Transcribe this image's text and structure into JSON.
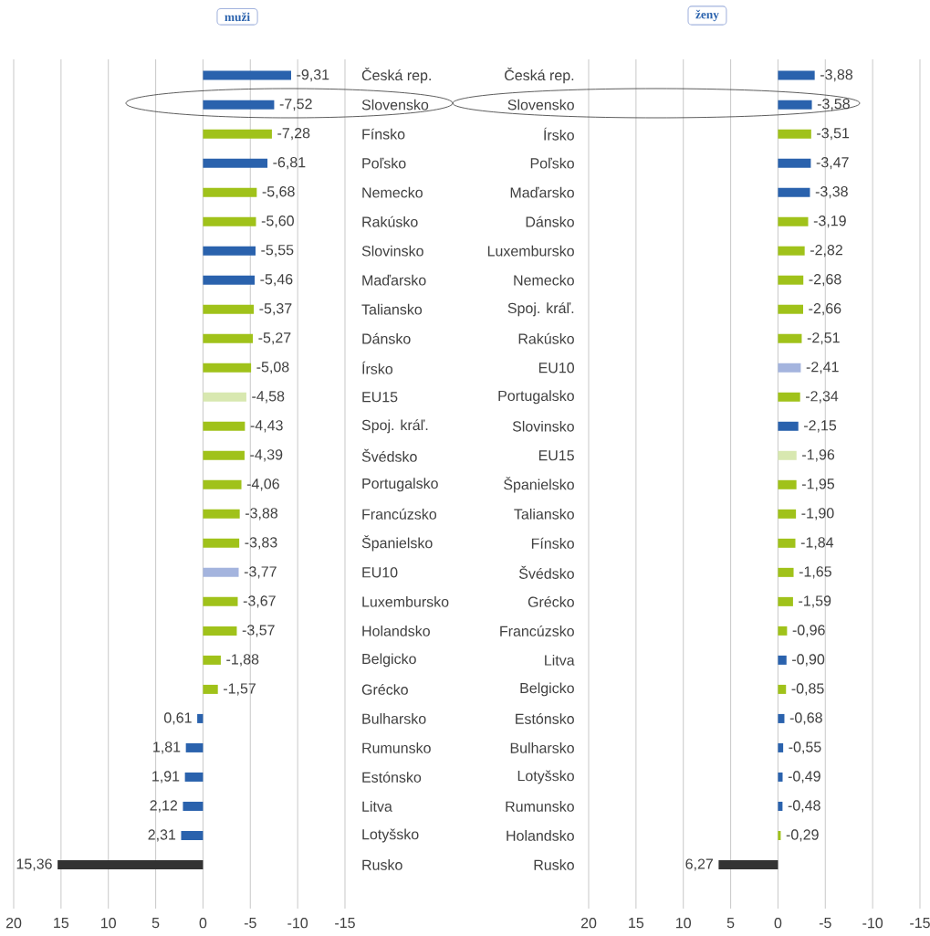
{
  "chart_data": [
    {
      "type": "bar",
      "orientation": "horizontal",
      "title": "muži",
      "categories": [
        "Česká rep.",
        "Slovensko",
        "Fínsko",
        "Poľsko",
        "Nemecko",
        "Rakúsko",
        "Slovinsko",
        "Maďarsko",
        "Taliansko",
        "Dánsko",
        "Írsko",
        "EU15",
        "Spoj. kráľ.",
        "Švédsko",
        "Portugalsko",
        "Francúzsko",
        "Španielsko",
        "EU10",
        "Luxembursko",
        "Holandsko",
        "Belgicko",
        "Grécko",
        "Bulharsko",
        "Rumunsko",
        "Estónsko",
        "Litva",
        "Lotyšsko",
        "Rusko"
      ],
      "values": [
        -9.31,
        -7.52,
        -7.28,
        -6.81,
        -5.68,
        -5.6,
        -5.55,
        -5.46,
        -5.37,
        -5.27,
        -5.08,
        -4.58,
        -4.43,
        -4.39,
        -4.06,
        -3.88,
        -3.83,
        -3.77,
        -3.67,
        -3.57,
        -1.88,
        -1.57,
        0.61,
        1.81,
        1.91,
        2.12,
        2.31,
        15.36
      ],
      "value_labels": [
        "-9,31",
        "-7,52",
        "-7,28",
        "-6,81",
        "-5,68",
        "-5,60",
        "-5,55",
        "-5,46",
        "-5,37",
        "-5,27",
        "-5,08",
        "-4,58",
        "-4,43",
        "-4,39",
        "-4,06",
        "-3,88",
        "-3,83",
        "-3,77",
        "-3,67",
        "-3,57",
        "-1,88",
        "-1,57",
        "0,61",
        "1,81",
        "1,91",
        "2,12",
        "2,31",
        "15,36"
      ],
      "colors": [
        "#2a62ad",
        "#2a62ad",
        "#a0c21a",
        "#2a62ad",
        "#a0c21a",
        "#a0c21a",
        "#2a62ad",
        "#2a62ad",
        "#a0c21a",
        "#a0c21a",
        "#a0c21a",
        "#d8e8b0",
        "#a0c21a",
        "#a0c21a",
        "#a0c21a",
        "#a0c21a",
        "#a0c21a",
        "#a4b4de",
        "#a0c21a",
        "#a0c21a",
        "#a0c21a",
        "#a0c21a",
        "#2a62ad",
        "#2a62ad",
        "#2a62ad",
        "#2a62ad",
        "#2a62ad",
        "#333333"
      ],
      "xlim": [
        20,
        -15
      ],
      "xticks": [
        20,
        15,
        10,
        5,
        0,
        -5,
        -10,
        -15
      ],
      "grid": "x"
    },
    {
      "type": "bar",
      "orientation": "horizontal",
      "title": "ženy",
      "categories": [
        "Česká rep.",
        "Slovensko",
        "Írsko",
        "Poľsko",
        "Maďarsko",
        "Dánsko",
        "Luxembursko",
        "Nemecko",
        "Spoj. kráľ.",
        "Rakúsko",
        "EU10",
        "Portugalsko",
        "Slovinsko",
        "EU15",
        "Španielsko",
        "Taliansko",
        "Fínsko",
        "Švédsko",
        "Grécko",
        "Francúzsko",
        "Litva",
        "Belgicko",
        "Estónsko",
        "Bulharsko",
        "Lotyšsko",
        "Rumunsko",
        "Holandsko",
        "Rusko"
      ],
      "values": [
        -3.88,
        -3.58,
        -3.51,
        -3.47,
        -3.38,
        -3.19,
        -2.82,
        -2.68,
        -2.66,
        -2.51,
        -2.41,
        -2.34,
        -2.15,
        -1.96,
        -1.95,
        -1.9,
        -1.84,
        -1.65,
        -1.59,
        -0.96,
        -0.9,
        -0.85,
        -0.68,
        -0.55,
        -0.49,
        -0.48,
        -0.29,
        6.27
      ],
      "value_labels": [
        "-3,88",
        "-3,58",
        "-3,51",
        "-3,47",
        "-3,38",
        "-3,19",
        "-2,82",
        "-2,68",
        "-2,66",
        "-2,51",
        "-2,41",
        "-2,34",
        "-2,15",
        "-1,96",
        "-1,95",
        "-1,90",
        "-1,84",
        "-1,65",
        "-1,59",
        "-0,96",
        "-0,90",
        "-0,85",
        "-0,68",
        "-0,55",
        "-0,49",
        "-0,48",
        "-0,29",
        "6,27"
      ],
      "colors": [
        "#2a62ad",
        "#2a62ad",
        "#a0c21a",
        "#2a62ad",
        "#2a62ad",
        "#a0c21a",
        "#a0c21a",
        "#a0c21a",
        "#a0c21a",
        "#a0c21a",
        "#a4b4de",
        "#a0c21a",
        "#2a62ad",
        "#d8e8b0",
        "#a0c21a",
        "#a0c21a",
        "#a0c21a",
        "#a0c21a",
        "#a0c21a",
        "#a0c21a",
        "#2a62ad",
        "#a0c21a",
        "#2a62ad",
        "#2a62ad",
        "#2a62ad",
        "#2a62ad",
        "#a0c21a",
        "#333333"
      ],
      "xlim": [
        20,
        -15
      ],
      "xticks": [
        20,
        15,
        10,
        5,
        0,
        -5,
        -10,
        -15
      ],
      "grid": "x"
    }
  ]
}
